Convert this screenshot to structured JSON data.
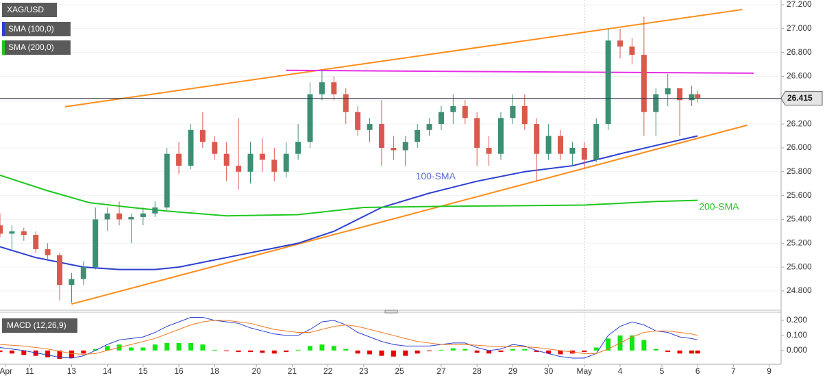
{
  "chart_data": [
    {
      "type": "candlestick",
      "title": "XAG/USD",
      "xlim": [
        0,
        131
      ],
      "ylim": [
        24.656,
        27.24
      ],
      "yticks": [
        {
          "value": 24.8,
          "label": "24.800"
        },
        {
          "value": 25.0,
          "label": "25.000"
        },
        {
          "value": 25.2,
          "label": "25.200"
        },
        {
          "value": 25.4,
          "label": "25.400"
        },
        {
          "value": 25.6,
          "label": "25.600"
        },
        {
          "value": 25.8,
          "label": "25.800"
        },
        {
          "value": 26.0,
          "label": "26.000"
        },
        {
          "value": 26.2,
          "label": "26.200"
        },
        {
          "value": 26.4,
          "label": "26.400"
        },
        {
          "value": 26.6,
          "label": "26.600"
        },
        {
          "value": 26.8,
          "label": "26.800"
        },
        {
          "value": 27.0,
          "label": "27.000"
        },
        {
          "value": 27.2,
          "label": "27.200"
        }
      ],
      "grid": true,
      "up_color": "#3d8f74",
      "down_color": "#d9594c",
      "current_price": 26.415,
      "x": [
        0,
        2,
        4,
        6,
        8,
        10,
        12,
        14,
        16,
        18,
        20,
        22,
        24,
        26,
        28,
        30,
        32,
        34,
        36,
        38,
        40,
        42,
        44,
        46,
        48,
        50,
        52,
        54,
        56,
        58,
        60,
        62,
        64,
        66,
        68,
        70,
        72,
        74,
        76,
        78,
        80,
        82,
        84,
        86,
        88,
        90,
        92,
        94,
        96,
        98,
        100,
        102,
        104,
        106,
        108,
        110,
        112,
        114,
        116,
        117
      ],
      "open": [
        25.35,
        25.28,
        25.3,
        25.27,
        25.15,
        25.1,
        24.85,
        24.9,
        25.0,
        25.4,
        25.45,
        25.4,
        25.42,
        25.45,
        25.5,
        25.95,
        25.85,
        26.15,
        26.05,
        25.95,
        25.85,
        25.8,
        25.95,
        25.9,
        25.8,
        25.95,
        26.05,
        26.45,
        26.55,
        26.45,
        26.3,
        26.15,
        26.2,
        26.0,
        25.98,
        26.05,
        26.15,
        26.2,
        26.3,
        26.35,
        26.25,
        26.0,
        25.95,
        26.25,
        26.35,
        26.2,
        25.95,
        26.1,
        25.95,
        26.0,
        25.9,
        26.2,
        26.9,
        26.85,
        26.78,
        26.3,
        26.45,
        26.5,
        26.4,
        26.45
      ],
      "high": [
        25.45,
        25.35,
        25.33,
        25.3,
        25.2,
        25.12,
        24.95,
        25.05,
        25.5,
        25.5,
        25.55,
        25.45,
        25.5,
        25.55,
        26.0,
        26.05,
        26.2,
        26.3,
        26.1,
        26.05,
        26.25,
        26.05,
        26.08,
        26.0,
        26.05,
        26.2,
        26.55,
        26.65,
        26.6,
        26.5,
        26.35,
        26.25,
        26.4,
        26.1,
        26.1,
        26.2,
        26.25,
        26.35,
        26.45,
        26.4,
        26.3,
        26.1,
        26.3,
        26.45,
        26.45,
        26.25,
        26.2,
        26.15,
        26.05,
        26.05,
        26.25,
        27.0,
        27.0,
        26.92,
        27.1,
        26.5,
        26.62,
        26.5,
        26.52,
        26.48
      ],
      "low": [
        25.25,
        25.15,
        25.22,
        25.12,
        25.05,
        24.72,
        24.7,
        24.85,
        24.98,
        25.3,
        25.35,
        25.2,
        25.35,
        25.42,
        25.48,
        25.78,
        25.82,
        26.0,
        25.9,
        25.72,
        25.65,
        25.7,
        25.8,
        25.72,
        25.75,
        25.9,
        26.0,
        26.4,
        26.4,
        26.2,
        26.1,
        26.05,
        25.85,
        25.9,
        25.85,
        26.0,
        26.1,
        26.15,
        26.2,
        26.2,
        25.85,
        25.85,
        25.9,
        26.2,
        26.15,
        25.72,
        25.9,
        25.9,
        25.85,
        25.82,
        25.88,
        26.15,
        26.75,
        26.7,
        26.1,
        26.1,
        26.35,
        26.1,
        26.35,
        26.38
      ],
      "close": [
        25.28,
        25.3,
        25.27,
        25.15,
        25.1,
        24.85,
        24.9,
        25.0,
        25.4,
        25.45,
        25.4,
        25.42,
        25.45,
        25.5,
        25.95,
        25.85,
        26.15,
        26.05,
        25.95,
        25.85,
        25.8,
        25.95,
        25.9,
        25.8,
        25.95,
        26.05,
        26.45,
        26.55,
        26.45,
        26.3,
        26.15,
        26.2,
        26.0,
        25.98,
        26.05,
        26.15,
        26.2,
        26.3,
        26.35,
        26.25,
        26.0,
        25.95,
        26.25,
        26.35,
        26.2,
        25.95,
        26.1,
        25.95,
        26.0,
        25.9,
        26.2,
        26.9,
        26.85,
        26.78,
        26.3,
        26.45,
        26.5,
        26.4,
        26.45,
        26.415
      ],
      "series": [
        {
          "name": "SMA (100,0)",
          "label": "100-SMA",
          "color": "#2b3fd0",
          "label_color": "#5b6fd6",
          "x": [
            0,
            6,
            14,
            20,
            26,
            30,
            40,
            50,
            56,
            64,
            72,
            80,
            88,
            96,
            104,
            110,
            117
          ],
          "values": [
            25.17,
            25.08,
            25.0,
            24.98,
            24.98,
            25.0,
            25.1,
            25.2,
            25.3,
            25.5,
            25.62,
            25.72,
            25.8,
            25.85,
            25.95,
            26.02,
            26.1
          ]
        },
        {
          "name": "SMA (200,0)",
          "label": "200-SMA",
          "color": "#1ec81e",
          "label_color": "#1ec81e",
          "x": [
            0,
            8,
            15,
            22,
            28,
            38,
            50,
            61,
            75,
            98,
            110,
            117
          ],
          "values": [
            25.77,
            25.64,
            25.54,
            25.5,
            25.47,
            25.43,
            25.44,
            25.5,
            25.51,
            25.52,
            25.55,
            25.56
          ]
        }
      ],
      "trendlines": [
        {
          "color": "#ff8c1a",
          "x": [
            10.9,
            124.5
          ],
          "values": [
            26.345,
            27.16
          ]
        },
        {
          "color": "#ff8c1a",
          "x": [
            12,
            125.3
          ],
          "values": [
            24.69,
            26.19
          ]
        },
        {
          "color": "#e62ee6",
          "x": [
            48,
            126.4
          ],
          "values": [
            26.65,
            26.626
          ]
        }
      ]
    },
    {
      "type": "macd",
      "title": "MACD (12,26,9)",
      "ylim": [
        -0.082,
        0.245
      ],
      "yticks": [
        {
          "value": 0.0,
          "label": "0.000"
        },
        {
          "value": 0.1,
          "label": "0.100"
        },
        {
          "value": 0.2,
          "label": "0.200"
        }
      ],
      "xticks": [
        {
          "value": 1,
          "label": "Apr"
        },
        {
          "value": 5,
          "label": "11"
        },
        {
          "value": 12,
          "label": "13"
        },
        {
          "value": 18,
          "label": "14"
        },
        {
          "value": 24,
          "label": "15"
        },
        {
          "value": 30,
          "label": "16"
        },
        {
          "value": 36,
          "label": "18"
        },
        {
          "value": 43,
          "label": "20"
        },
        {
          "value": 49,
          "label": "21"
        },
        {
          "value": 55,
          "label": "22"
        },
        {
          "value": 61,
          "label": "23"
        },
        {
          "value": 67,
          "label": "25"
        },
        {
          "value": 74,
          "label": "27"
        },
        {
          "value": 80,
          "label": "28"
        },
        {
          "value": 86,
          "label": "29"
        },
        {
          "value": 92,
          "label": "30"
        },
        {
          "value": 98,
          "label": "May"
        },
        {
          "value": 104,
          "label": "4"
        },
        {
          "value": 111,
          "label": "5"
        },
        {
          "value": 117,
          "label": "6"
        },
        {
          "value": 123,
          "label": "7"
        },
        {
          "value": 129,
          "label": "9"
        }
      ],
      "up_color": "#14e614",
      "down_color": "#e60000",
      "macd_color": "#2b3fd0",
      "signal_color": "#f07820",
      "x": [
        0,
        2,
        4,
        6,
        8,
        10,
        12,
        14,
        16,
        18,
        20,
        22,
        24,
        26,
        28,
        30,
        32,
        34,
        36,
        38,
        40,
        42,
        44,
        46,
        48,
        50,
        52,
        54,
        56,
        58,
        60,
        62,
        64,
        66,
        68,
        70,
        72,
        74,
        76,
        78,
        80,
        82,
        84,
        86,
        88,
        90,
        92,
        94,
        96,
        98,
        100,
        102,
        104,
        106,
        108,
        110,
        112,
        114,
        116,
        117
      ],
      "histogram": [
        -0.01,
        -0.02,
        -0.03,
        -0.035,
        -0.045,
        -0.055,
        -0.05,
        -0.02,
        0.01,
        0.03,
        0.04,
        0.02,
        0.02,
        0.04,
        0.05,
        0.05,
        0.05,
        0.04,
        0.005,
        -0.005,
        -0.01,
        -0.01,
        -0.015,
        -0.02,
        -0.01,
        0.005,
        0.03,
        0.04,
        0.03,
        0.01,
        -0.02,
        -0.025,
        -0.035,
        -0.04,
        -0.035,
        -0.02,
        -0.005,
        0.005,
        0.015,
        0.01,
        -0.015,
        -0.02,
        -0.01,
        0.01,
        0.01,
        -0.01,
        -0.02,
        -0.025,
        -0.02,
        -0.01,
        0.02,
        0.08,
        0.1,
        0.1,
        0.07,
        0.01,
        -0.01,
        -0.02,
        -0.02,
        -0.02
      ],
      "macd": [
        0.02,
        0.01,
        0.0,
        -0.015,
        -0.03,
        -0.045,
        -0.05,
        -0.035,
        0.0,
        0.04,
        0.07,
        0.08,
        0.09,
        0.12,
        0.16,
        0.19,
        0.22,
        0.22,
        0.2,
        0.19,
        0.18,
        0.15,
        0.13,
        0.11,
        0.1,
        0.1,
        0.14,
        0.19,
        0.2,
        0.17,
        0.12,
        0.09,
        0.06,
        0.04,
        0.03,
        0.03,
        0.03,
        0.04,
        0.05,
        0.05,
        0.02,
        0.0,
        0.01,
        0.04,
        0.03,
        0.0,
        -0.02,
        -0.04,
        -0.05,
        -0.05,
        -0.02,
        0.1,
        0.16,
        0.19,
        0.17,
        0.13,
        0.12,
        0.09,
        0.08,
        0.07
      ],
      "signal": [
        0.04,
        0.035,
        0.03,
        0.02,
        0.01,
        -0.005,
        -0.02,
        -0.025,
        -0.02,
        0.0,
        0.02,
        0.04,
        0.06,
        0.08,
        0.11,
        0.14,
        0.17,
        0.19,
        0.2,
        0.2,
        0.19,
        0.18,
        0.16,
        0.14,
        0.13,
        0.12,
        0.12,
        0.14,
        0.16,
        0.17,
        0.16,
        0.14,
        0.12,
        0.1,
        0.08,
        0.06,
        0.05,
        0.04,
        0.04,
        0.04,
        0.035,
        0.03,
        0.025,
        0.025,
        0.025,
        0.02,
        0.01,
        0.0,
        -0.01,
        -0.02,
        -0.02,
        0.01,
        0.05,
        0.09,
        0.12,
        0.13,
        0.13,
        0.12,
        0.11,
        0.1
      ]
    }
  ]
}
